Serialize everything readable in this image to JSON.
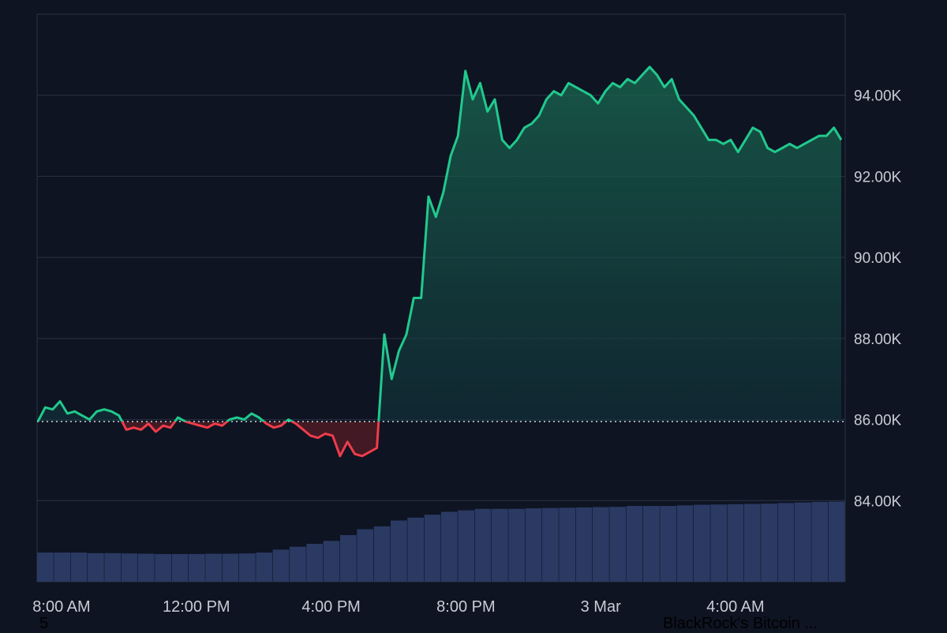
{
  "chart_data": {
    "type": "area",
    "title": "",
    "xlabel": "",
    "ylabel": "",
    "x_tick_labels": [
      "8:00 AM",
      "12:00 PM",
      "4:00 PM",
      "8:00 PM",
      "3 Mar",
      "4:00 AM"
    ],
    "y_tick_labels": [
      "84.00K",
      "86.00K",
      "88.00K",
      "90.00K",
      "92.00K",
      "94.00K"
    ],
    "ylim": [
      82000,
      96000
    ],
    "baseline": 85950,
    "grid": true,
    "series": [
      {
        "values": [
          85950,
          86300,
          86250,
          86450,
          86150,
          86200,
          86100,
          86000,
          86200,
          86250,
          86200,
          86100,
          85750,
          85800,
          85750,
          85900,
          85700,
          85850,
          85800,
          86050,
          85950,
          85900,
          85850,
          85800,
          85900,
          85850,
          86000,
          86050,
          86000,
          86150,
          86050,
          85900,
          85800,
          85850,
          86000,
          85900,
          85750,
          85600,
          85550,
          85650,
          85600,
          85100,
          85450,
          85150,
          85100,
          85200,
          85300,
          88100,
          87000,
          87700,
          88100,
          89000,
          89000,
          91500,
          91000,
          91600,
          92500,
          93000,
          94600,
          93900,
          94300,
          93600,
          93900,
          92900,
          92700,
          92900,
          93200,
          93300,
          93500,
          93900,
          94100,
          94000,
          94300,
          94200,
          94100,
          94000,
          93800,
          94100,
          94300,
          94200,
          94400,
          94300,
          94500,
          94700,
          94500,
          94200,
          94400,
          93900,
          93700,
          93500,
          93200,
          92900,
          92900,
          92800,
          92900,
          92600,
          92900,
          93200,
          93100,
          92700,
          92600,
          92700,
          92800,
          92700,
          92800,
          92900,
          93000,
          93000,
          93200,
          92900
        ],
        "up_color": "#21c98d",
        "down_color": "#f03c4a"
      },
      {
        "name": "volume",
        "type": "bar",
        "values": [
          10,
          10,
          10,
          9.8,
          9.8,
          9.7,
          9.6,
          9.5,
          9.5,
          9.5,
          9.6,
          9.6,
          9.7,
          10,
          11,
          12,
          13,
          14,
          16,
          18,
          19,
          21,
          22,
          23,
          24,
          24.5,
          25,
          25,
          25,
          25.2,
          25.3,
          25.4,
          25.5,
          25.6,
          25.7,
          26,
          26,
          26,
          26.2,
          26.4,
          26.5,
          26.6,
          26.7,
          26.8,
          27,
          27.2,
          27.4,
          27.5
        ],
        "color": "#2b3a63"
      }
    ]
  },
  "footer": {
    "left_text": "5",
    "right_text": "BlackRock's Bitcoin ..."
  }
}
